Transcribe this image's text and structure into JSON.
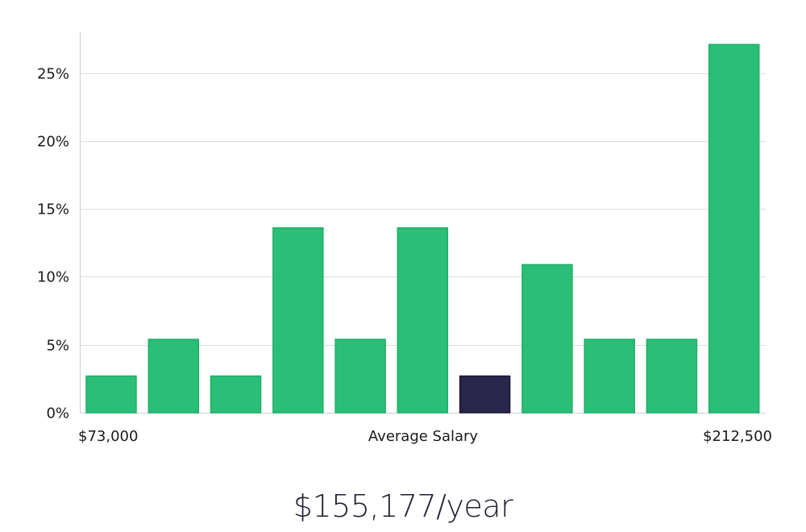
{
  "chart_data": {
    "type": "bar",
    "title": "",
    "xlabel": "Average Salary",
    "ylabel": "",
    "x_range_labels": {
      "min": "$73,000",
      "max": "$212,500"
    },
    "y_ticks": [
      {
        "value": 0,
        "label": "0%"
      },
      {
        "value": 5,
        "label": "5%"
      },
      {
        "value": 10,
        "label": "10%"
      },
      {
        "value": 15,
        "label": "15%"
      },
      {
        "value": 20,
        "label": "20%"
      },
      {
        "value": 25,
        "label": "25%"
      }
    ],
    "ylim": [
      0,
      28
    ],
    "grid": true,
    "values": [
      2.7,
      5.4,
      2.7,
      13.6,
      5.4,
      13.6,
      2.7,
      10.9,
      5.4,
      5.4,
      27.1
    ],
    "highlight_index": 6,
    "colors": {
      "bar": "#2abe76",
      "bar_border": "#1fb067",
      "highlight": "#29264a",
      "highlight_border": "#1a1838",
      "grid": "#dddddd",
      "axis": "#cfcfcf"
    }
  },
  "summary": {
    "average_salary": "$155,177/year"
  }
}
